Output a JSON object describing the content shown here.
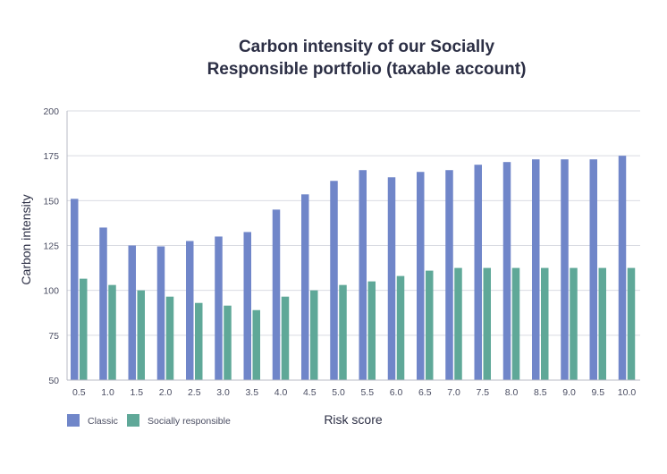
{
  "chart_data": {
    "type": "bar",
    "title_lines": [
      "Carbon intensity of our Socially",
      "Responsible portfolio (taxable account)"
    ],
    "xlabel": "Risk score",
    "ylabel": "Carbon intensity",
    "ylim": [
      50,
      200
    ],
    "yticks": [
      50,
      75,
      100,
      125,
      150,
      175,
      200
    ],
    "grid": true,
    "legend_position": "bottom-left",
    "categories": [
      "0.5",
      "1.0",
      "1.5",
      "2.0",
      "2.5",
      "3.0",
      "3.5",
      "4.0",
      "4.5",
      "5.0",
      "5.5",
      "6.0",
      "6.5",
      "7.0",
      "7.5",
      "8.0",
      "8.5",
      "9.0",
      "9.5",
      "10.0"
    ],
    "series": [
      {
        "name": "Classic",
        "color": "#7086c9",
        "values": [
          151,
          135,
          125,
          124.5,
          127.5,
          130,
          132.5,
          145,
          153.5,
          161,
          167,
          163,
          166,
          167,
          170,
          171.5,
          173,
          173,
          173,
          175
        ]
      },
      {
        "name": "Socially responsible",
        "color": "#5fa898",
        "values": [
          106.5,
          103,
          100,
          96.5,
          93,
          91.5,
          89,
          96.5,
          100,
          103,
          105,
          108,
          111,
          112.5,
          112.5,
          112.5,
          112.5,
          112.5,
          112.5,
          112.5
        ]
      }
    ]
  }
}
